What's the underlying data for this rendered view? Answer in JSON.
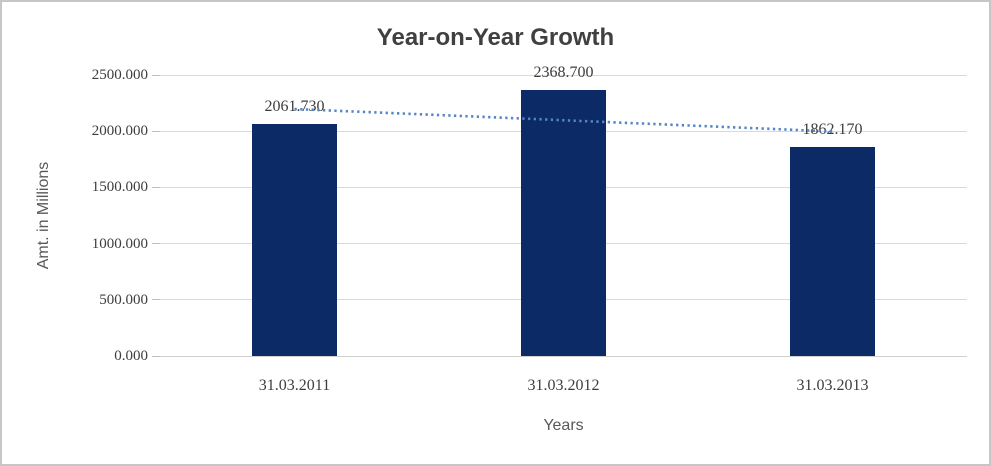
{
  "chart": {
    "title": "Year-on-Year Growth",
    "y_axis_title": "Amt. in Millions",
    "x_axis_title": "Years"
  },
  "chart_data": {
    "type": "bar",
    "title": "Year-on-Year Growth",
    "xlabel": "Years",
    "ylabel": "Amt. in Millions",
    "categories": [
      "31.03.2011",
      "31.03.2012",
      "31.03.2013"
    ],
    "values": [
      2061.73,
      2368.7,
      1862.17
    ],
    "data_labels": [
      "2061.730",
      "2368.700",
      "1862.170"
    ],
    "ylim": [
      0,
      2500
    ],
    "ytick_interval": 500,
    "ytick_labels": [
      "0.000",
      "500.000",
      "1000.000",
      "1500.000",
      "2000.000",
      "2500.000"
    ],
    "grid": true,
    "legend_position": "none",
    "trendline": {
      "type": "linear",
      "style": "dotted"
    }
  },
  "colors": {
    "bar": "#0B2A66",
    "trendline": "#5585C5",
    "gridline": "#D9D9D9",
    "axis_line": "#D0D0D0",
    "tick_mark": "#BFBFBF",
    "frame_border": "#C6C6C6",
    "title_text": "#404040",
    "label_text": "#3D3D3D",
    "axis_title_text": "#595959"
  }
}
